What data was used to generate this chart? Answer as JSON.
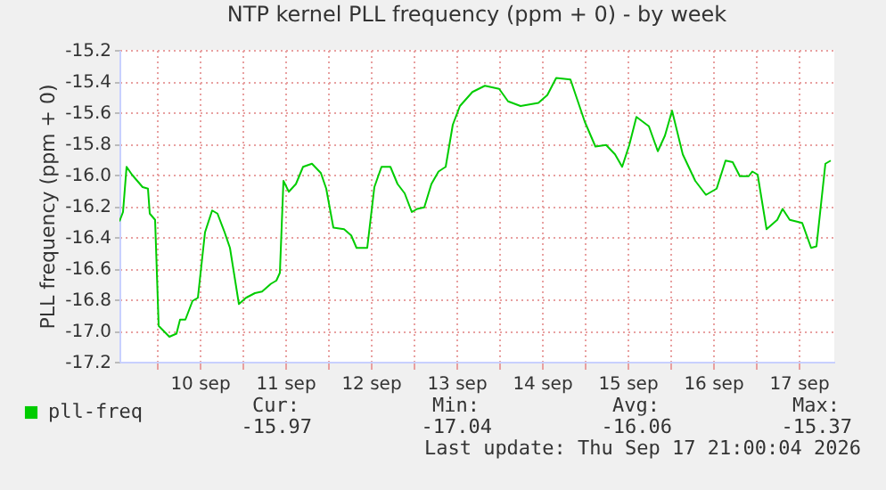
{
  "chart_data": {
    "type": "line",
    "title": "NTP kernel PLL frequency (ppm + 0) - by week",
    "ylabel": "PLL frequency (ppm + 0)",
    "x": [
      "2026-09-09T13:30",
      "2026-09-09T14:30",
      "2026-09-09T15:30",
      "2026-09-09T17:00",
      "2026-09-09T18:30",
      "2026-09-09T20:00",
      "2026-09-09T21:30",
      "2026-09-09T22:00",
      "2026-09-09T23:30",
      "2026-09-10T00:30",
      "2026-09-10T03:30",
      "2026-09-10T05:30",
      "2026-09-10T06:30",
      "2026-09-10T08:00",
      "2026-09-10T10:00",
      "2026-09-10T11:30",
      "2026-09-10T13:30",
      "2026-09-10T15:30",
      "2026-09-10T17:00",
      "2026-09-10T19:00",
      "2026-09-10T20:30",
      "2026-09-10T23:00",
      "2026-09-11T01:00",
      "2026-09-11T03:30",
      "2026-09-11T05:30",
      "2026-09-11T08:00",
      "2026-09-11T09:30",
      "2026-09-11T10:30",
      "2026-09-11T11:30",
      "2026-09-11T13:00",
      "2026-09-11T15:00",
      "2026-09-11T17:00",
      "2026-09-11T19:30",
      "2026-09-11T22:00",
      "2026-09-11T23:30",
      "2026-09-12T01:30",
      "2026-09-12T04:30",
      "2026-09-12T06:30",
      "2026-09-12T08:00",
      "2026-09-12T11:00",
      "2026-09-12T13:00",
      "2026-09-12T15:00",
      "2026-09-12T17:30",
      "2026-09-12T19:30",
      "2026-09-12T21:30",
      "2026-09-12T23:30",
      "2026-09-13T01:00",
      "2026-09-13T03:00",
      "2026-09-13T05:00",
      "2026-09-13T07:00",
      "2026-09-13T09:00",
      "2026-09-13T11:00",
      "2026-09-13T13:00",
      "2026-09-13T16:30",
      "2026-09-13T20:00",
      "2026-09-14T00:00",
      "2026-09-14T02:30",
      "2026-09-14T06:00",
      "2026-09-14T11:00",
      "2026-09-14T13:30",
      "2026-09-14T16:00",
      "2026-09-14T20:00",
      "2026-09-15T00:00",
      "2026-09-15T03:00",
      "2026-09-15T06:00",
      "2026-09-15T08:30",
      "2026-09-15T10:30",
      "2026-09-15T12:30",
      "2026-09-15T14:30",
      "2026-09-15T18:00",
      "2026-09-15T20:30",
      "2026-09-15T22:30",
      "2026-09-16T00:30",
      "2026-09-16T03:30",
      "2026-09-16T07:00",
      "2026-09-16T10:00",
      "2026-09-16T13:00",
      "2026-09-16T15:30",
      "2026-09-16T17:30",
      "2026-09-16T19:30",
      "2026-09-16T22:00",
      "2026-09-16T23:00",
      "2026-09-17T00:30",
      "2026-09-17T03:00",
      "2026-09-17T06:00",
      "2026-09-17T07:30",
      "2026-09-17T09:30",
      "2026-09-17T13:00",
      "2026-09-17T15:30",
      "2026-09-17T17:00",
      "2026-09-17T19:30",
      "2026-09-17T21:00"
    ],
    "series": [
      {
        "name": "pll-freq",
        "color": "#00cc00",
        "values": [
          -16.3,
          -16.24,
          -15.95,
          -16.0,
          -16.04,
          -16.08,
          -16.09,
          -16.25,
          -16.29,
          -16.97,
          -17.04,
          -17.02,
          -16.93,
          -16.93,
          -16.81,
          -16.79,
          -16.37,
          -16.23,
          -16.25,
          -16.37,
          -16.47,
          -16.83,
          -16.79,
          -16.76,
          -16.75,
          -16.7,
          -16.68,
          -16.63,
          -16.04,
          -16.11,
          -16.06,
          -15.95,
          -15.93,
          -15.99,
          -16.09,
          -16.34,
          -16.35,
          -16.39,
          -16.47,
          -16.47,
          -16.08,
          -15.95,
          -15.95,
          -16.06,
          -16.12,
          -16.24,
          -16.22,
          -16.21,
          -16.06,
          -15.98,
          -15.95,
          -15.68,
          -15.56,
          -15.47,
          -15.43,
          -15.45,
          -15.53,
          -15.56,
          -15.54,
          -15.49,
          -15.38,
          -15.39,
          -15.66,
          -15.82,
          -15.81,
          -15.87,
          -15.95,
          -15.81,
          -15.63,
          -15.69,
          -15.85,
          -15.75,
          -15.59,
          -15.87,
          -16.04,
          -16.13,
          -16.09,
          -15.91,
          -15.92,
          -16.01,
          -16.01,
          -15.98,
          -16.0,
          -16.35,
          -16.29,
          -16.22,
          -16.29,
          -16.31,
          -16.47,
          -16.46,
          -15.93,
          -15.91
        ]
      }
    ],
    "xlim": [
      "2026-09-09T13:30",
      "2026-09-17T22:00"
    ],
    "xticks": [
      {
        "value": "2026-09-10T00:00",
        "label": null
      },
      {
        "value": "2026-09-10T12:00",
        "label": "10 sep"
      },
      {
        "value": "2026-09-11T00:00",
        "label": null
      },
      {
        "value": "2026-09-11T12:00",
        "label": "11 sep"
      },
      {
        "value": "2026-09-12T00:00",
        "label": null
      },
      {
        "value": "2026-09-12T12:00",
        "label": "12 sep"
      },
      {
        "value": "2026-09-13T00:00",
        "label": null
      },
      {
        "value": "2026-09-13T12:00",
        "label": "13 sep"
      },
      {
        "value": "2026-09-14T00:00",
        "label": null
      },
      {
        "value": "2026-09-14T12:00",
        "label": "14 sep"
      },
      {
        "value": "2026-09-15T00:00",
        "label": null
      },
      {
        "value": "2026-09-15T12:00",
        "label": "15 sep"
      },
      {
        "value": "2026-09-16T00:00",
        "label": null
      },
      {
        "value": "2026-09-16T12:00",
        "label": "16 sep"
      },
      {
        "value": "2026-09-17T00:00",
        "label": null
      },
      {
        "value": "2026-09-17T12:00",
        "label": "17 sep"
      }
    ],
    "ylim": [
      -17.2,
      -15.2
    ],
    "yticks": [
      {
        "value": -17.2,
        "label": "-17.2"
      },
      {
        "value": -17.0,
        "label": "-17.0"
      },
      {
        "value": -16.8,
        "label": "-16.8"
      },
      {
        "value": -16.6,
        "label": "-16.6"
      },
      {
        "value": -16.4,
        "label": "-16.4"
      },
      {
        "value": -16.2,
        "label": "-16.2"
      },
      {
        "value": -16.0,
        "label": "-16.0"
      },
      {
        "value": -15.8,
        "label": "-15.8"
      },
      {
        "value": -15.6,
        "label": "-15.6"
      },
      {
        "value": -15.4,
        "label": "-15.4"
      },
      {
        "value": -15.2,
        "label": "-15.2"
      }
    ],
    "grid": true,
    "legend": "bottom",
    "annotations": [
      "Cur:",
      "-15.97",
      "Min:",
      "-17.04",
      "Avg:",
      "-16.06",
      "Max:",
      "-15.37",
      "Last update: Thu Sep 17 21:00:04 2026"
    ]
  }
}
